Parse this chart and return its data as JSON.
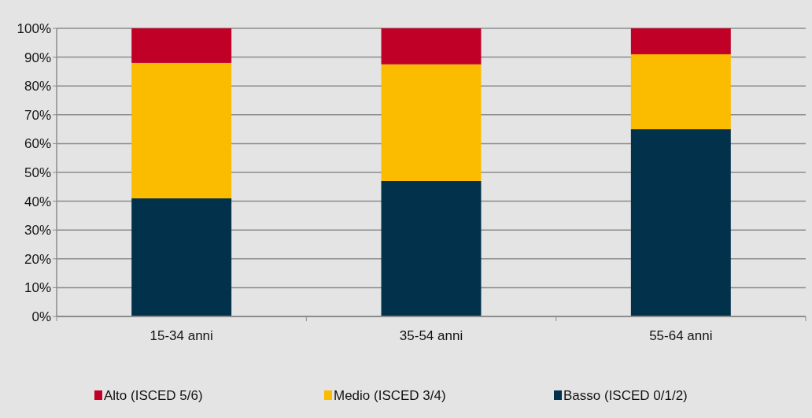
{
  "chart_data": {
    "type": "bar",
    "stacked": true,
    "categories": [
      "15-34 anni",
      "35-54 anni",
      "55-64 anni"
    ],
    "series": [
      {
        "name": "Basso (ISCED 0/1/2)",
        "color": "#02314b",
        "values": [
          41,
          47,
          65
        ]
      },
      {
        "name": "Medio (ISCED 3/4)",
        "color": "#fbbc00",
        "values": [
          47,
          40.5,
          26
        ]
      },
      {
        "name": "Alto (ISCED 5/6)",
        "color": "#c00027",
        "values": [
          12,
          12.5,
          9
        ]
      }
    ],
    "ylim": [
      0,
      100
    ],
    "yticks": [
      {
        "value": 0,
        "label": "0%"
      },
      {
        "value": 10,
        "label": "10%"
      },
      {
        "value": 20,
        "label": "20%"
      },
      {
        "value": 30,
        "label": "30%"
      },
      {
        "value": 40,
        "label": "40%"
      },
      {
        "value": 50,
        "label": "50%"
      },
      {
        "value": 60,
        "label": "60%"
      },
      {
        "value": 70,
        "label": "70%"
      },
      {
        "value": 80,
        "label": "80%"
      },
      {
        "value": 90,
        "label": "90%"
      },
      {
        "value": 100,
        "label": "100%"
      }
    ],
    "grid": "y",
    "legend": "bottom"
  }
}
